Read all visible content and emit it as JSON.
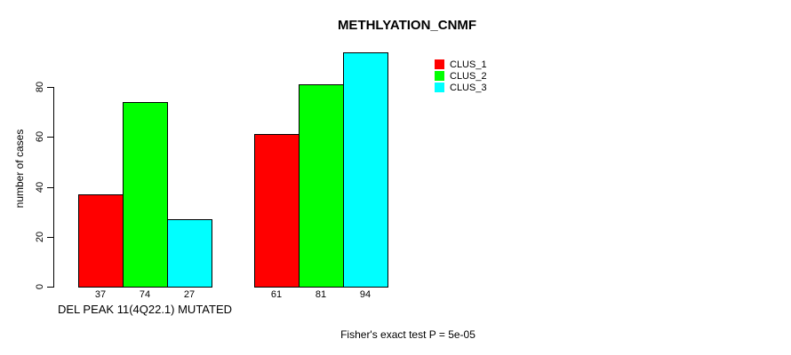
{
  "chart_data": {
    "type": "bar",
    "title": "METHLYATION_CNMF",
    "ylabel": "number of cases",
    "xlabel": "DEL PEAK 11(4Q22.1) MUTATED",
    "footnote": "Fisher's exact test P = 5e-05",
    "categories": [
      "DEL PEAK 11(4Q22.1) MUTATED",
      ""
    ],
    "series": [
      {
        "name": "CLUS_1",
        "color": "#ff0000",
        "values": [
          37,
          61
        ]
      },
      {
        "name": "CLUS_2",
        "color": "#00ff00",
        "values": [
          74,
          81
        ]
      },
      {
        "name": "CLUS_3",
        "color": "#00ffff",
        "values": [
          27,
          94
        ]
      }
    ],
    "bar_value_labels": [
      [
        37,
        74,
        27
      ],
      [
        61,
        81,
        94
      ]
    ],
    "yticks": [
      0,
      20,
      40,
      60,
      80
    ],
    "ylim": [
      0,
      94
    ],
    "grid": false,
    "legend_position": "top-right",
    "colors": {
      "background": "#ffffff",
      "axis": "#000000",
      "text": "#000000"
    }
  }
}
